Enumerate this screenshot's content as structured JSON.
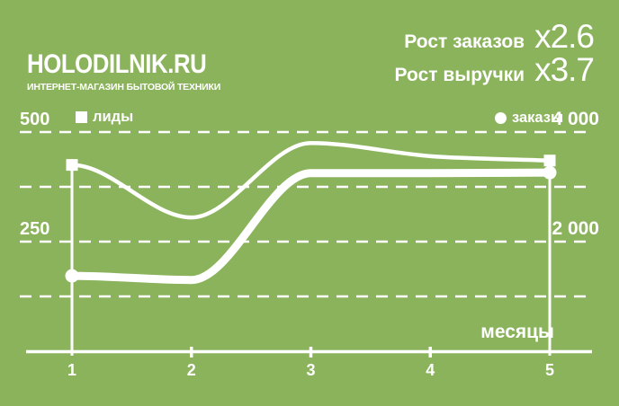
{
  "theme": {
    "background": "#8bb35c",
    "foreground": "#ffffff"
  },
  "header": {
    "logo": {
      "title": "HOLODILNIK.RU",
      "subtitle": "ИНТЕРНЕТ-МАГАЗИН БЫТОВОЙ ТЕХНИКИ"
    },
    "stats": [
      {
        "label": "Рост заказов",
        "value": "x2.6"
      },
      {
        "label": "Рост выручки",
        "value": "x3.7"
      }
    ]
  },
  "chart_data": {
    "type": "line",
    "x": [
      1,
      2,
      3,
      4,
      5
    ],
    "x_ticks": [
      "1",
      "2",
      "3",
      "4",
      "5"
    ],
    "xlabel": "месяцы",
    "grid": "dashed horizontal",
    "legend_position": "top",
    "series": [
      {
        "name": "лиды",
        "marker": "square",
        "axis": "left",
        "values": [
          425,
          305,
          475,
          445,
          435
        ]
      },
      {
        "name": "заказы",
        "marker": "circle",
        "axis": "right",
        "values": [
          1375,
          1300,
          3250,
          3250,
          3260
        ]
      }
    ],
    "left_axis": {
      "range": [
        0,
        500
      ],
      "gridline_values": [
        500,
        375,
        250,
        125
      ],
      "ticks_shown": [
        "500",
        "250"
      ]
    },
    "right_axis": {
      "range": [
        0,
        4000
      ],
      "gridline_values": [
        4000,
        3000,
        2000,
        1000
      ],
      "ticks_shown": [
        "4 000",
        "2 000"
      ]
    }
  }
}
